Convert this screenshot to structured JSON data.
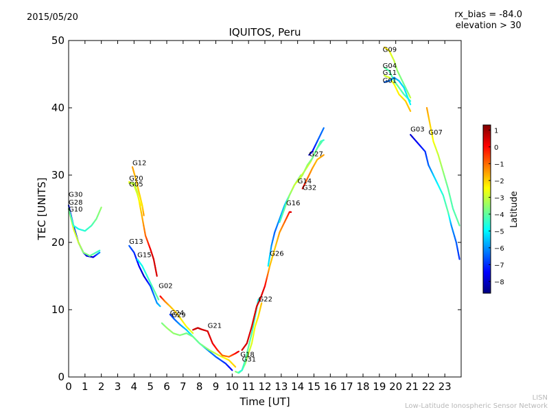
{
  "header": {
    "date": "2015/05/20",
    "rx_bias": "rx_bias = -84.0",
    "elevation": "elevation > 30"
  },
  "footer": {
    "line1": "LISN",
    "line2": "Low-Latitude Ionospheric Sensor Network"
  },
  "chart_data": {
    "type": "scatter",
    "title": "IQUITOS, Peru",
    "xlabel": "Time [UT]",
    "ylabel": "TEC [UNITS]",
    "xlim": [
      0,
      24
    ],
    "ylim": [
      0,
      50
    ],
    "xticks": [
      "0",
      "1",
      "2",
      "3",
      "4",
      "5",
      "6",
      "7",
      "8",
      "9",
      "10",
      "11",
      "12",
      "13",
      "14",
      "15",
      "16",
      "17",
      "18",
      "19",
      "20",
      "21",
      "22",
      "23"
    ],
    "yticks": [
      "0",
      "10",
      "20",
      "30",
      "40",
      "50"
    ],
    "grid": false,
    "colorbar": {
      "label": "Latitude",
      "range": [
        -8.7,
        1.3
      ],
      "ticks": [
        "1",
        "0",
        "−1",
        "−2",
        "−3",
        "−4",
        "−5",
        "−6",
        "−7",
        "−8"
      ],
      "colormap": [
        "#00007f",
        "#0000ff",
        "#007fff",
        "#00ffff",
        "#7fff7f",
        "#ffff00",
        "#ff7f00",
        "#ff0000",
        "#7f0000"
      ]
    },
    "series": [
      {
        "name": "G30",
        "label_at": [
          0.0,
          26.8
        ],
        "points": [
          [
            0.0,
            25.5,
            -7.2
          ],
          [
            0.3,
            22.5,
            -7.0
          ],
          [
            0.6,
            20.0,
            -7.0
          ],
          [
            0.9,
            18.5,
            -7.5
          ],
          [
            1.1,
            18.0,
            -7.8
          ],
          [
            1.5,
            17.8,
            -8.0
          ],
          [
            1.9,
            18.5,
            -6.0
          ]
        ]
      },
      {
        "name": "G28",
        "label_at": [
          0.0,
          25.6
        ],
        "points": [
          [
            0.0,
            25.0,
            -3.3
          ],
          [
            0.3,
            22.0,
            -2.8
          ],
          [
            0.6,
            20.0,
            -3.0
          ],
          [
            0.9,
            18.5,
            -3.6
          ],
          [
            1.3,
            18.0,
            -3.8
          ],
          [
            1.9,
            18.8,
            -4.5
          ]
        ]
      },
      {
        "name": "G10",
        "label_at": [
          0.0,
          24.6
        ],
        "points": [
          [
            0.0,
            25.0,
            -3.8
          ],
          [
            0.3,
            22.5,
            -4.5
          ],
          [
            0.6,
            22.0,
            -4.8
          ],
          [
            1.0,
            21.7,
            -4.5
          ],
          [
            1.4,
            22.5,
            -4.3
          ],
          [
            1.7,
            23.5,
            -3.8
          ],
          [
            2.0,
            25.2,
            -3.5
          ]
        ]
      },
      {
        "name": "G12",
        "label_at": [
          3.9,
          31.5
        ],
        "points": [
          [
            3.9,
            31.2,
            -1.5
          ],
          [
            4.1,
            29.5,
            -1.8
          ],
          [
            4.3,
            27.5,
            -2.0
          ],
          [
            4.5,
            25.5,
            -2.2
          ],
          [
            4.6,
            24.0,
            -1.5
          ]
        ]
      },
      {
        "name": "G20",
        "label_at": [
          3.7,
          29.2
        ],
        "points": [
          [
            3.7,
            29.0,
            -2.5
          ],
          [
            4.0,
            28.5,
            -2.7
          ],
          [
            4.2,
            27.2,
            -2.8
          ],
          [
            4.4,
            25.5,
            -2.4
          ]
        ]
      },
      {
        "name": "G05",
        "label_at": [
          3.7,
          28.3
        ],
        "points": [
          [
            3.7,
            28.8,
            -3.0
          ],
          [
            4.0,
            28.8,
            -3.2
          ],
          [
            4.2,
            27.5,
            -3.0
          ],
          [
            4.4,
            25.0,
            -2.0
          ],
          [
            4.7,
            21.0,
            -1.0
          ],
          [
            5.0,
            19.0,
            0.2
          ],
          [
            5.2,
            17.5,
            0.5
          ],
          [
            5.4,
            15.0,
            0.4
          ]
        ]
      },
      {
        "name": "G13",
        "label_at": [
          3.7,
          19.8
        ],
        "points": [
          [
            3.7,
            19.5,
            -6.5
          ],
          [
            4.0,
            18.5,
            -7.0
          ],
          [
            4.3,
            16.5,
            -7.5
          ],
          [
            4.6,
            15.0,
            -8.0
          ],
          [
            5.0,
            13.5,
            -6.8
          ],
          [
            5.4,
            11.0,
            -6.0
          ],
          [
            5.6,
            10.5,
            -5.5
          ]
        ]
      },
      {
        "name": "G15",
        "label_at": [
          4.2,
          17.8
        ],
        "points": [
          [
            4.2,
            17.5,
            -5.0
          ],
          [
            4.5,
            16.5,
            -4.8
          ],
          [
            4.8,
            15.0,
            -4.5
          ],
          [
            5.2,
            13.0,
            -4.2
          ],
          [
            5.5,
            11.5,
            -4.0
          ]
        ]
      },
      {
        "name": "G02",
        "label_at": [
          5.5,
          13.2
        ],
        "points": [
          [
            5.6,
            12.0,
            0.3
          ],
          [
            5.9,
            11.2,
            -1.2
          ],
          [
            6.2,
            10.5,
            -1.8
          ],
          [
            6.6,
            9.5,
            -2.0
          ],
          [
            7.2,
            7.5,
            -2.5
          ],
          [
            7.6,
            6.5,
            -2.8
          ]
        ]
      },
      {
        "name": "G24",
        "label_at": [
          6.2,
          9.2
        ],
        "points": [
          [
            6.2,
            9.3,
            -7.0
          ],
          [
            6.5,
            8.5,
            -6.5
          ],
          [
            6.8,
            7.8,
            -6.0
          ],
          [
            7.2,
            7.0,
            -5.5
          ],
          [
            7.6,
            6.0,
            -5.0
          ],
          [
            8.0,
            5.0,
            -4.5
          ],
          [
            8.5,
            4.0,
            -6.0
          ],
          [
            9.0,
            3.0,
            -6.5
          ],
          [
            9.6,
            2.0,
            -7.0
          ],
          [
            10.0,
            1.0,
            -7.5
          ]
        ]
      },
      {
        "name": "G29",
        "label_at": [
          6.3,
          8.9
        ],
        "points": [
          [
            5.7,
            8.0,
            -3.8
          ],
          [
            6.0,
            7.3,
            -3.5
          ],
          [
            6.4,
            6.5,
            -3.5
          ],
          [
            6.8,
            6.2,
            -3.6
          ],
          [
            7.2,
            6.5,
            -3.8
          ],
          [
            7.6,
            6.0,
            -3.8
          ],
          [
            8.0,
            5.0,
            -3.9
          ],
          [
            8.6,
            4.0,
            -3.5
          ],
          [
            9.2,
            3.2,
            -2.8
          ],
          [
            9.8,
            2.5,
            -2.2
          ],
          [
            10.2,
            1.5,
            -2.0
          ]
        ]
      },
      {
        "name": "G21",
        "label_at": [
          8.5,
          7.3
        ],
        "points": [
          [
            7.6,
            7.0,
            0.5
          ],
          [
            7.9,
            7.3,
            0.6
          ],
          [
            8.1,
            7.1,
            0.5
          ],
          [
            8.5,
            6.8,
            0.4
          ],
          [
            8.8,
            5.0,
            0.3
          ],
          [
            9.1,
            4.0,
            -0.2
          ],
          [
            9.4,
            3.2,
            -1.0
          ],
          [
            9.8,
            3.0,
            -1.2
          ],
          [
            10.2,
            3.5,
            0.0
          ],
          [
            10.4,
            3.8,
            0.3
          ]
        ]
      },
      {
        "name": "G18",
        "label_at": [
          10.5,
          3.0
        ],
        "points": [
          [
            10.2,
            0.8,
            -3.5
          ],
          [
            10.4,
            0.6,
            -4.0
          ],
          [
            10.6,
            1.0,
            -3.8
          ],
          [
            10.8,
            2.0,
            -3.5
          ],
          [
            11.0,
            3.5,
            -3.0
          ],
          [
            11.2,
            5.0,
            -2.8
          ],
          [
            11.4,
            7.5,
            -2.5
          ],
          [
            11.6,
            9.0,
            -2.2
          ],
          [
            11.8,
            11.0,
            -1.8
          ]
        ]
      },
      {
        "name": "G31",
        "label_at": [
          10.6,
          2.3
        ],
        "points": [
          [
            10.4,
            0.7,
            -4.5
          ],
          [
            10.6,
            1.0,
            -4.5
          ],
          [
            10.8,
            2.5,
            -4.2
          ],
          [
            11.0,
            4.5,
            -4.0
          ],
          [
            11.2,
            6.5,
            -4.2
          ],
          [
            11.4,
            9.0,
            -4.5
          ],
          [
            11.6,
            11.5,
            -4.8
          ]
        ]
      },
      {
        "name": "G22",
        "label_at": [
          11.6,
          11.2
        ],
        "points": [
          [
            10.6,
            4.0,
            0.4
          ],
          [
            10.9,
            5.0,
            0.5
          ],
          [
            11.2,
            7.5,
            0.3
          ],
          [
            11.5,
            10.5,
            0.4
          ],
          [
            11.7,
            11.5,
            0.5
          ],
          [
            12.0,
            13.5,
            0.2
          ],
          [
            12.3,
            16.5,
            -1.8
          ],
          [
            12.6,
            19.0,
            -2.0
          ],
          [
            12.9,
            21.5,
            -1.5
          ],
          [
            13.2,
            23.0,
            -1.0
          ],
          [
            13.5,
            24.5,
            -0.2
          ],
          [
            13.6,
            24.5,
            0.4
          ]
        ]
      },
      {
        "name": "G26",
        "label_at": [
          12.3,
          18.0
        ],
        "points": [
          [
            12.2,
            16.5,
            -5.0
          ],
          [
            12.4,
            19.5,
            -6.0
          ],
          [
            12.6,
            21.5,
            -6.5
          ],
          [
            12.9,
            23.5,
            -6.0
          ],
          [
            13.2,
            25.5,
            -5.5
          ],
          [
            13.5,
            27.0,
            -5.0
          ],
          [
            13.8,
            28.5,
            -4.5
          ],
          [
            14.2,
            30.0,
            -4.0
          ]
        ]
      },
      {
        "name": "G16",
        "label_at": [
          13.3,
          25.5
        ],
        "points": [
          [
            12.9,
            23.0,
            -4.5
          ],
          [
            13.2,
            25.0,
            -4.0
          ],
          [
            13.5,
            27.0,
            -3.5
          ],
          [
            13.8,
            28.5,
            -3.0
          ],
          [
            14.1,
            29.5,
            -2.8
          ],
          [
            14.4,
            30.5,
            -2.5
          ],
          [
            14.8,
            32.0,
            -2.8
          ],
          [
            15.1,
            33.5,
            -3.5
          ],
          [
            15.4,
            35.0,
            -4.0
          ],
          [
            15.6,
            35.2,
            -4.5
          ]
        ]
      },
      {
        "name": "G14",
        "label_at": [
          14.0,
          28.8
        ],
        "points": [
          [
            14.0,
            29.0,
            -3.0
          ],
          [
            14.3,
            30.0,
            -3.2
          ],
          [
            14.6,
            31.5,
            -3.5
          ],
          [
            14.9,
            32.5,
            -3.8
          ],
          [
            15.2,
            34.0,
            -4.0
          ],
          [
            15.5,
            35.0,
            -4.2
          ]
        ]
      },
      {
        "name": "G32",
        "label_at": [
          14.3,
          27.8
        ],
        "points": [
          [
            14.3,
            28.0,
            0.5
          ],
          [
            14.6,
            29.5,
            -1.0
          ],
          [
            14.9,
            31.0,
            -1.5
          ],
          [
            15.2,
            32.3,
            -1.8
          ],
          [
            15.6,
            33.0,
            -1.5
          ]
        ]
      },
      {
        "name": "G27",
        "label_at": [
          14.7,
          32.8
        ],
        "points": [
          [
            14.7,
            33.0,
            -8.0
          ],
          [
            14.9,
            33.5,
            -7.5
          ],
          [
            15.1,
            34.5,
            -7.0
          ],
          [
            15.3,
            35.5,
            -6.5
          ],
          [
            15.6,
            37.0,
            -6.3
          ]
        ]
      },
      {
        "name": "G09",
        "label_at": [
          19.2,
          48.3
        ],
        "points": [
          [
            19.3,
            49.0,
            -2.0
          ],
          [
            19.6,
            48.5,
            -2.5
          ],
          [
            19.9,
            47.0,
            -3.0
          ],
          [
            20.1,
            45.5,
            -3.5
          ],
          [
            20.4,
            44.0,
            -3.8
          ],
          [
            20.7,
            42.5,
            -4.0
          ],
          [
            20.9,
            41.5,
            -3.0
          ]
        ]
      },
      {
        "name": "G04",
        "label_at": [
          19.2,
          45.9
        ],
        "points": [
          [
            19.3,
            46.0,
            -4.0
          ],
          [
            19.6,
            45.5,
            -4.2
          ],
          [
            19.9,
            44.0,
            -4.0
          ],
          [
            20.2,
            43.0,
            -4.0
          ],
          [
            20.5,
            42.0,
            -4.2
          ],
          [
            20.9,
            41.0,
            -4.5
          ]
        ]
      },
      {
        "name": "G11",
        "label_at": [
          19.2,
          44.9
        ],
        "points": [
          [
            19.3,
            44.8,
            -3.0
          ],
          [
            19.6,
            44.5,
            -2.8
          ],
          [
            19.9,
            43.5,
            -2.5
          ],
          [
            20.2,
            42.0,
            -2.3
          ],
          [
            20.6,
            41.0,
            -2.0
          ],
          [
            20.9,
            39.5,
            -1.8
          ]
        ]
      },
      {
        "name": "G01",
        "label_at": [
          19.2,
          43.7
        ],
        "points": [
          [
            19.3,
            43.8,
            -6.5
          ],
          [
            19.6,
            44.0,
            -6.3
          ],
          [
            19.9,
            44.5,
            -6.0
          ],
          [
            20.2,
            44.0,
            -5.5
          ],
          [
            20.5,
            43.0,
            -5.3
          ],
          [
            20.9,
            40.5,
            -5.0
          ]
        ]
      },
      {
        "name": "G03",
        "label_at": [
          20.9,
          36.5
        ],
        "points": [
          [
            20.9,
            36.0,
            -8.0
          ],
          [
            21.8,
            33.5,
            -7.0
          ],
          [
            22.0,
            31.5,
            -6.5
          ],
          [
            22.3,
            30.0,
            -5.5
          ],
          [
            22.6,
            28.5,
            -5.0
          ],
          [
            22.9,
            27.0,
            -4.5
          ],
          [
            23.2,
            24.5,
            -4.0
          ],
          [
            23.4,
            22.5,
            -6.0
          ],
          [
            23.7,
            20.0,
            -6.5
          ],
          [
            23.9,
            17.5,
            -7.0
          ]
        ]
      },
      {
        "name": "G07",
        "label_at": [
          22.0,
          36.0
        ],
        "points": [
          [
            21.9,
            40.0,
            -1.5
          ],
          [
            22.1,
            37.5,
            -2.0
          ],
          [
            22.3,
            35.0,
            -2.5
          ],
          [
            22.6,
            33.0,
            -3.0
          ],
          [
            22.9,
            30.5,
            -3.5
          ],
          [
            23.2,
            28.0,
            -4.0
          ],
          [
            23.5,
            25.0,
            -4.2
          ],
          [
            23.9,
            22.5,
            -4.0
          ]
        ]
      }
    ]
  }
}
